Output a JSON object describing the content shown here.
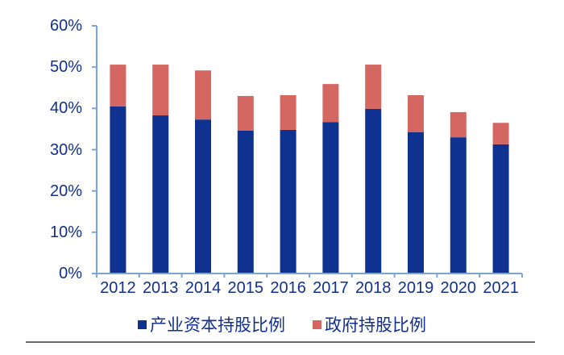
{
  "chart_data": {
    "type": "bar",
    "stacked": true,
    "title": "",
    "xlabel": "",
    "ylabel": "",
    "categories": [
      "2012",
      "2013",
      "2014",
      "2015",
      "2016",
      "2017",
      "2018",
      "2019",
      "2020",
      "2021"
    ],
    "series": [
      {
        "name": "产业资本持股比例",
        "color": "#0f318f",
        "values": [
          40.5,
          38.3,
          37.3,
          34.6,
          34.8,
          36.7,
          39.9,
          34.2,
          33.0,
          31.3
        ]
      },
      {
        "name": "政府持股比例",
        "color": "#d56762",
        "values": [
          10.1,
          12.3,
          11.9,
          8.4,
          8.4,
          9.2,
          10.7,
          9.0,
          6.1,
          5.2
        ]
      }
    ],
    "ylim": [
      0,
      60
    ],
    "yticks": [
      "0%",
      "10%",
      "20%",
      "30%",
      "40%",
      "50%",
      "60%"
    ],
    "grid": false,
    "legend_position": "bottom"
  },
  "legend": {
    "items": [
      {
        "label": "产业资本持股比例",
        "color": "#0f318f"
      },
      {
        "label": "政府持股比例",
        "color": "#d56762"
      }
    ]
  },
  "colors": {
    "axis": "#7aa3d8",
    "text": "#12308c"
  }
}
